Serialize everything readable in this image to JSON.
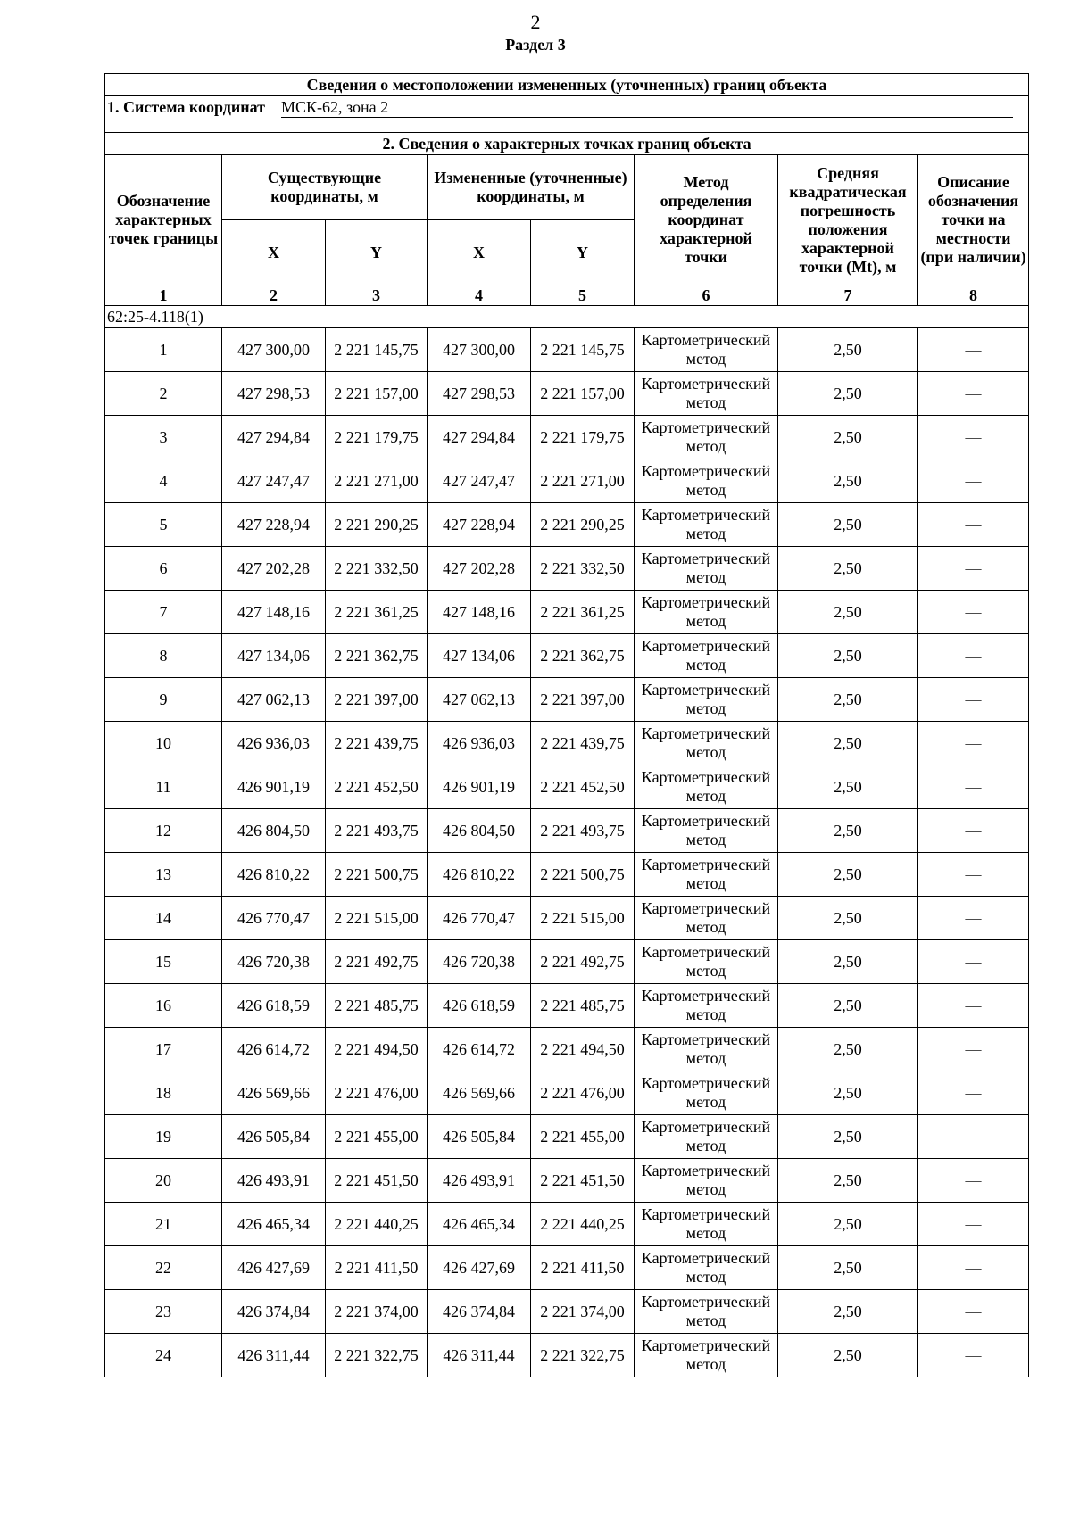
{
  "page_number": "2",
  "section_title": "Раздел 3",
  "table": {
    "title": "Сведения о местоположении измененных (уточненных) границ объекта",
    "coord_system_label": "1. Система координат",
    "coord_system_value": "МСК-62, зона 2",
    "points_title": "2. Сведения о характерных точках границ объекта",
    "headers": {
      "designation": "Обозначение характерных точек границы",
      "existing": "Существующие координаты, м",
      "changed": "Измененные (уточненные) координаты, м",
      "method": "Метод определения координат характерной точки",
      "error": "Средняя квадратическая погрешность положения характерной точки (Mt), м",
      "description": "Описание обозначения точки на местности (при наличии)",
      "x": "X",
      "y": "Y"
    },
    "column_numbers": [
      "1",
      "2",
      "3",
      "4",
      "5",
      "6",
      "7",
      "8"
    ],
    "group_label": "62:25-4.118(1)",
    "method_text": "Картометрический метод",
    "error_text": "2,50",
    "description_text": "—",
    "rows": [
      [
        "1",
        "427 300,00",
        "2 221 145,75",
        "427 300,00",
        "2 221 145,75"
      ],
      [
        "2",
        "427 298,53",
        "2 221 157,00",
        "427 298,53",
        "2 221 157,00"
      ],
      [
        "3",
        "427 294,84",
        "2 221 179,75",
        "427 294,84",
        "2 221 179,75"
      ],
      [
        "4",
        "427 247,47",
        "2 221 271,00",
        "427 247,47",
        "2 221 271,00"
      ],
      [
        "5",
        "427 228,94",
        "2 221 290,25",
        "427 228,94",
        "2 221 290,25"
      ],
      [
        "6",
        "427 202,28",
        "2 221 332,50",
        "427 202,28",
        "2 221 332,50"
      ],
      [
        "7",
        "427 148,16",
        "2 221 361,25",
        "427 148,16",
        "2 221 361,25"
      ],
      [
        "8",
        "427 134,06",
        "2 221 362,75",
        "427 134,06",
        "2 221 362,75"
      ],
      [
        "9",
        "427 062,13",
        "2 221 397,00",
        "427 062,13",
        "2 221 397,00"
      ],
      [
        "10",
        "426 936,03",
        "2 221 439,75",
        "426 936,03",
        "2 221 439,75"
      ],
      [
        "11",
        "426 901,19",
        "2 221 452,50",
        "426 901,19",
        "2 221 452,50"
      ],
      [
        "12",
        "426 804,50",
        "2 221 493,75",
        "426 804,50",
        "2 221 493,75"
      ],
      [
        "13",
        "426 810,22",
        "2 221 500,75",
        "426 810,22",
        "2 221 500,75"
      ],
      [
        "14",
        "426 770,47",
        "2 221 515,00",
        "426 770,47",
        "2 221 515,00"
      ],
      [
        "15",
        "426 720,38",
        "2 221 492,75",
        "426 720,38",
        "2 221 492,75"
      ],
      [
        "16",
        "426 618,59",
        "2 221 485,75",
        "426 618,59",
        "2 221 485,75"
      ],
      [
        "17",
        "426 614,72",
        "2 221 494,50",
        "426 614,72",
        "2 221 494,50"
      ],
      [
        "18",
        "426 569,66",
        "2 221 476,00",
        "426 569,66",
        "2 221 476,00"
      ],
      [
        "19",
        "426 505,84",
        "2 221 455,00",
        "426 505,84",
        "2 221 455,00"
      ],
      [
        "20",
        "426 493,91",
        "2 221 451,50",
        "426 493,91",
        "2 221 451,50"
      ],
      [
        "21",
        "426 465,34",
        "2 221 440,25",
        "426 465,34",
        "2 221 440,25"
      ],
      [
        "22",
        "426 427,69",
        "2 221 411,50",
        "426 427,69",
        "2 221 411,50"
      ],
      [
        "23",
        "426 374,84",
        "2 221 374,00",
        "426 374,84",
        "2 221 374,00"
      ],
      [
        "24",
        "426 311,44",
        "2 221 322,75",
        "426 311,44",
        "2 221 322,75"
      ]
    ]
  }
}
